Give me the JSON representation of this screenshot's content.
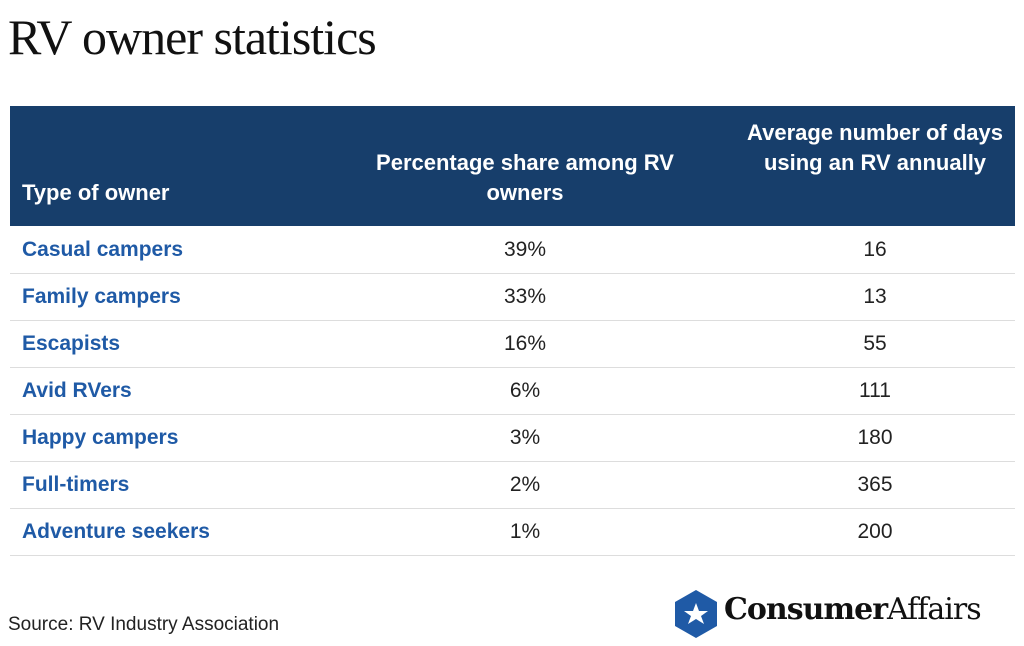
{
  "header": {
    "title": "RV owner statistics"
  },
  "table": {
    "columns": [
      "Type of owner",
      "Percentage share among RV owners",
      "Average number of days using an RV annually"
    ],
    "rows": [
      [
        "Casual campers",
        "39%",
        "16"
      ],
      [
        "Family campers",
        "33%",
        "13"
      ],
      [
        "Escapists",
        "16%",
        "55"
      ],
      [
        "Avid RVers",
        "6%",
        "111"
      ],
      [
        "Happy campers",
        "3%",
        "180"
      ],
      [
        "Full-timers",
        "2%",
        "365"
      ],
      [
        "Adventure seekers",
        "1%",
        "200"
      ]
    ]
  },
  "footer": {
    "source": "Source: RV Industry Association",
    "logo": {
      "bold": "Consumer",
      "light": "Affairs"
    }
  }
}
